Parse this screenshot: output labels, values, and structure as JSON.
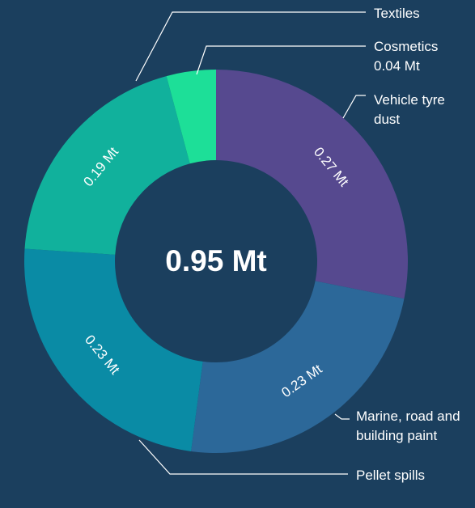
{
  "chart_data": {
    "type": "donut",
    "center_label": "0.95 Mt",
    "categories": [
      "Vehicle tyre dust",
      "Marine, road and building paint",
      "Pellet spills",
      "Textiles",
      "Cosmetics"
    ],
    "values": [
      0.27,
      0.23,
      0.23,
      0.19,
      0.04
    ],
    "value_labels": [
      "0.27 Mt",
      "0.23 Mt",
      "0.23 Mt",
      "0.19 Mt",
      "0.04 Mt"
    ],
    "colors": [
      "#56498f",
      "#2c6899",
      "#0a8ba5",
      "#11b19c",
      "#1ddf98"
    ]
  }
}
